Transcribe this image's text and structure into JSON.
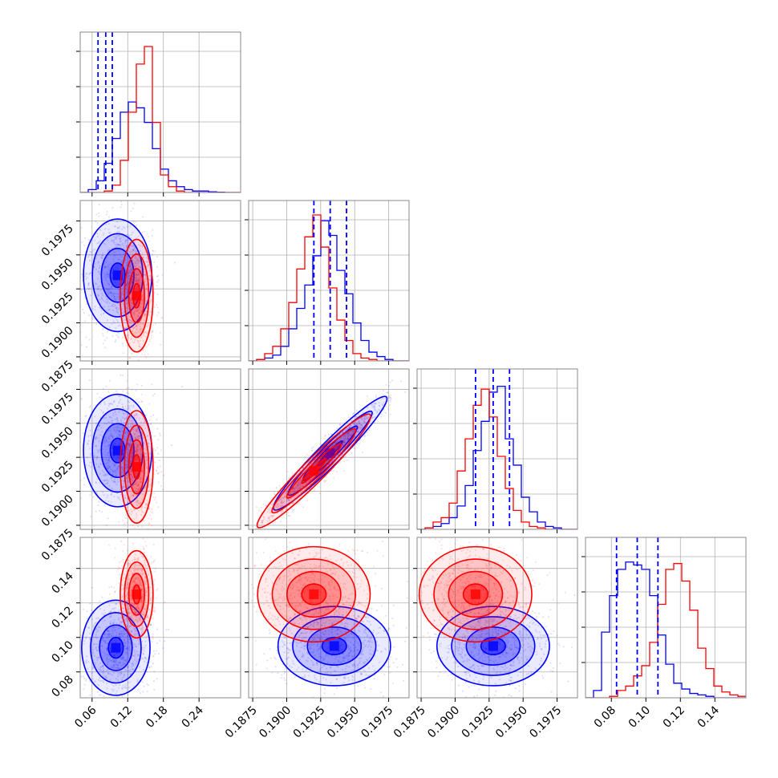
{
  "chart_data": {
    "type": "corner",
    "variables": 4,
    "colors": {
      "blue": "#0000ff",
      "red": "#ff0000",
      "grid": "#b0b0b0"
    },
    "grid": true,
    "x_ticks": [
      [
        "0.06",
        "0.12",
        "0.18",
        "0.24"
      ],
      [
        "0.1875",
        "0.1900",
        "0.1925",
        "0.1950",
        "0.1975"
      ],
      [
        "0.1875",
        "0.1900",
        "0.1925",
        "0.1950",
        "0.1975"
      ],
      [
        "0.08",
        "0.10",
        "0.12",
        "0.14"
      ]
    ],
    "y_ticks": [
      [],
      [
        "0.1875",
        "0.1900",
        "0.1925",
        "0.1950",
        "0.1975"
      ],
      [
        "0.1875",
        "0.1900",
        "0.1925",
        "0.1950",
        "0.1975"
      ],
      [
        "0.08",
        "0.10",
        "0.12",
        "0.14"
      ]
    ],
    "ranges": [
      [
        0.04,
        0.31
      ],
      [
        0.1872,
        0.199
      ],
      [
        0.1872,
        0.199
      ],
      [
        0.065,
        0.158
      ]
    ],
    "x_tick_values": [
      [
        0.06,
        0.12,
        0.18,
        0.24
      ],
      [
        0.1875,
        0.19,
        0.1925,
        0.195,
        0.1975
      ],
      [
        0.1875,
        0.19,
        0.1925,
        0.195,
        0.1975
      ],
      [
        0.08,
        0.1,
        0.12,
        0.14
      ]
    ],
    "histograms": [
      {
        "bins": [
          0.04,
          0.31
        ],
        "blue": [
          0.0,
          0.02,
          0.08,
          0.2,
          0.37,
          0.55,
          0.62,
          0.58,
          0.48,
          0.3,
          0.16,
          0.08,
          0.04,
          0.02,
          0.01,
          0.01,
          0.005,
          0.002,
          0.0,
          0.0
        ],
        "red": [
          0.0,
          0.0,
          0.0,
          0.01,
          0.05,
          0.22,
          0.55,
          0.88,
          1.0,
          0.48,
          0.12,
          0.04,
          0.01,
          0.0,
          0.0,
          0.0,
          0.0,
          0.0,
          0.0,
          0.0
        ],
        "quantiles": [
          0.07,
          0.083,
          0.094
        ]
      },
      {
        "bins": [
          0.1872,
          0.199
        ],
        "blue": [
          0.0,
          0.01,
          0.02,
          0.04,
          0.1,
          0.22,
          0.36,
          0.52,
          0.72,
          0.96,
          0.86,
          0.62,
          0.46,
          0.26,
          0.14,
          0.06,
          0.03,
          0.01,
          0.0,
          0.0
        ],
        "red": [
          0.0,
          0.01,
          0.05,
          0.1,
          0.22,
          0.4,
          0.63,
          0.85,
          1.0,
          0.78,
          0.5,
          0.28,
          0.14,
          0.05,
          0.02,
          0.01,
          0.0,
          0.0,
          0.0,
          0.0
        ],
        "quantiles": [
          0.192,
          0.1932,
          0.1944
        ]
      },
      {
        "bins": [
          0.1872,
          0.199
        ],
        "blue": [
          0.0,
          0.01,
          0.02,
          0.04,
          0.08,
          0.16,
          0.3,
          0.54,
          0.74,
          0.94,
          0.98,
          0.62,
          0.44,
          0.22,
          0.12,
          0.05,
          0.02,
          0.01,
          0.0,
          0.0
        ],
        "red": [
          0.0,
          0.01,
          0.05,
          0.08,
          0.18,
          0.4,
          0.62,
          0.85,
          0.96,
          0.77,
          0.5,
          0.28,
          0.13,
          0.05,
          0.02,
          0.01,
          0.0,
          0.0,
          0.0,
          0.0
        ],
        "quantiles": [
          0.1915,
          0.1928,
          0.194
        ]
      },
      {
        "bins": [
          0.065,
          0.158
        ],
        "blue": [
          0.0,
          0.05,
          0.45,
          0.7,
          0.88,
          0.93,
          0.91,
          0.88,
          0.7,
          0.43,
          0.23,
          0.1,
          0.06,
          0.03,
          0.02,
          0.01,
          0.0,
          0.0,
          0.0,
          0.0
        ],
        "red": [
          0.0,
          0.0,
          0.0,
          0.01,
          0.05,
          0.08,
          0.15,
          0.22,
          0.38,
          0.64,
          0.88,
          0.92,
          0.8,
          0.6,
          0.34,
          0.2,
          0.08,
          0.04,
          0.02,
          0.01
        ],
        "quantiles": [
          0.083,
          0.095,
          0.107
        ]
      }
    ],
    "scatter_panels": [
      {
        "row": 1,
        "col": 0,
        "blue": {
          "mx": 0.103,
          "my": 0.1935,
          "sx": 0.025,
          "sy": 0.0018,
          "rho": 0.0
        },
        "red": {
          "mx": 0.135,
          "my": 0.192,
          "sx": 0.012,
          "sy": 0.0018,
          "rho": -0.2
        }
      },
      {
        "row": 2,
        "col": 0,
        "blue": {
          "mx": 0.103,
          "my": 0.193,
          "sx": 0.025,
          "sy": 0.0018,
          "rho": 0.0
        },
        "red": {
          "mx": 0.135,
          "my": 0.1918,
          "sx": 0.012,
          "sy": 0.0018,
          "rho": -0.2
        }
      },
      {
        "row": 2,
        "col": 1,
        "blue": {
          "mx": 0.1932,
          "my": 0.1928,
          "sx": 0.0018,
          "sy": 0.0018,
          "rho": 0.96
        },
        "red": {
          "mx": 0.192,
          "my": 0.1915,
          "sx": 0.0018,
          "sy": 0.0018,
          "rho": 0.96
        }
      },
      {
        "row": 3,
        "col": 0,
        "blue": {
          "mx": 0.1,
          "my": 0.094,
          "sx": 0.025,
          "sy": 0.012,
          "rho": 0.0
        },
        "red": {
          "mx": 0.135,
          "my": 0.125,
          "sx": 0.012,
          "sy": 0.011,
          "rho": 0.0
        }
      },
      {
        "row": 3,
        "col": 1,
        "blue": {
          "mx": 0.1935,
          "my": 0.095,
          "sx": 0.0018,
          "sy": 0.01,
          "rho": 0.0
        },
        "red": {
          "mx": 0.192,
          "my": 0.125,
          "sx": 0.0018,
          "sy": 0.012,
          "rho": 0.0
        }
      },
      {
        "row": 3,
        "col": 2,
        "blue": {
          "mx": 0.1928,
          "my": 0.095,
          "sx": 0.0018,
          "sy": 0.01,
          "rho": 0.0
        },
        "red": {
          "mx": 0.1915,
          "my": 0.125,
          "sx": 0.0018,
          "sy": 0.012,
          "rho": 0.0
        }
      }
    ]
  }
}
